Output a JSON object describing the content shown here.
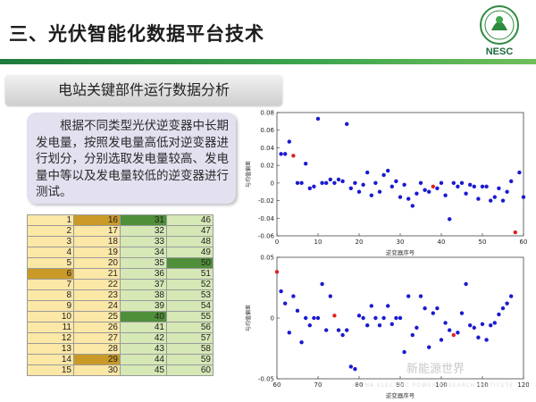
{
  "header": {
    "title": "三、光伏智能化数据平台技术",
    "logo_text": "NESC",
    "accent_color": "#2e8b3e"
  },
  "section": {
    "label": "电站关键部件运行数据分析"
  },
  "description": {
    "text": "根据不同类型光伏逆变器中长期发电量，按照发电量高低对逆变器进行划分，分别选取发电量较高、发电量中等以及发电量较低的逆变器进行测试。"
  },
  "table": {
    "rows": [
      [
        "1",
        "16",
        "31",
        "46"
      ],
      [
        "2",
        "17",
        "32",
        "47"
      ],
      [
        "3",
        "18",
        "33",
        "48"
      ],
      [
        "4",
        "19",
        "34",
        "49"
      ],
      [
        "5",
        "20",
        "35",
        "50"
      ],
      [
        "6",
        "21",
        "36",
        "51"
      ],
      [
        "7",
        "22",
        "37",
        "52"
      ],
      [
        "8",
        "23",
        "38",
        "53"
      ],
      [
        "9",
        "24",
        "39",
        "54"
      ],
      [
        "10",
        "25",
        "40",
        "55"
      ],
      [
        "11",
        "26",
        "41",
        "56"
      ],
      [
        "12",
        "27",
        "42",
        "57"
      ],
      [
        "13",
        "28",
        "43",
        "58"
      ],
      [
        "14",
        "29",
        "44",
        "59"
      ],
      [
        "15",
        "30",
        "45",
        "60"
      ]
    ],
    "highlights": [
      {
        "row": 0,
        "col": 1,
        "color": "orange"
      },
      {
        "row": 0,
        "col": 2,
        "color": "green"
      },
      {
        "row": 4,
        "col": 3,
        "color": "green"
      },
      {
        "row": 5,
        "col": 0,
        "color": "orange"
      },
      {
        "row": 9,
        "col": 2,
        "color": "green"
      },
      {
        "row": 13,
        "col": 1,
        "color": "orange"
      }
    ]
  },
  "chart_data": [
    {
      "type": "scatter",
      "xlabel": "逆变器序号",
      "ylabel": "与均值偏差",
      "xlim": [
        0,
        60
      ],
      "ylim": [
        -0.06,
        0.08
      ],
      "xticks": [
        "0",
        "10",
        "20",
        "30",
        "40",
        "50",
        "60"
      ],
      "yticks": [
        "-0.06",
        "-0.04",
        "-0.02",
        "0",
        "0.02",
        "0.04",
        "0.06",
        "0.08"
      ],
      "series": [
        {
          "color": "#1a1ad0",
          "x": [
            1,
            2,
            3,
            5,
            6,
            7,
            8,
            9,
            10,
            11,
            12,
            13,
            14,
            15,
            16,
            17,
            18,
            19,
            20,
            21,
            22,
            23,
            24,
            25,
            26,
            27,
            28,
            29,
            30,
            31,
            32,
            33,
            34,
            35,
            36,
            37,
            39,
            40,
            41,
            42,
            43,
            44,
            45,
            46,
            47,
            48,
            49,
            50,
            51,
            52,
            53,
            54,
            55,
            56,
            57,
            59,
            60
          ],
          "y": [
            0.033,
            0.033,
            0.047,
            0.0,
            0.0,
            0.022,
            -0.006,
            -0.004,
            0.073,
            0.0,
            0.0,
            0.004,
            0.0,
            0.004,
            0.002,
            0.067,
            -0.006,
            0.0,
            -0.01,
            -0.002,
            0.012,
            -0.014,
            0.0,
            -0.01,
            0.009,
            0.014,
            -0.004,
            0.002,
            -0.016,
            -0.002,
            -0.018,
            -0.026,
            -0.012,
            0.0,
            -0.008,
            -0.01,
            -0.006,
            0.0,
            -0.014,
            -0.041,
            0.0,
            -0.004,
            0.0,
            -0.012,
            -0.002,
            -0.004,
            -0.018,
            -0.004,
            -0.004,
            -0.02,
            -0.016,
            -0.006,
            -0.02,
            -0.01,
            0.002,
            0.012,
            -0.016
          ]
        },
        {
          "color": "#e02020",
          "x": [
            4,
            38,
            58
          ],
          "y": [
            0.031,
            -0.004,
            -0.056
          ]
        }
      ]
    },
    {
      "type": "scatter",
      "xlabel": "逆变器序号",
      "ylabel": "与均值偏差",
      "xlim": [
        60,
        120
      ],
      "ylim": [
        -0.05,
        0.05
      ],
      "xticks": [
        "60",
        "70",
        "80",
        "90",
        "100",
        "110",
        "120"
      ],
      "yticks": [
        "-0.05",
        "0",
        "0.05"
      ],
      "series": [
        {
          "color": "#1a1ad0",
          "x": [
            61,
            62,
            63,
            64,
            65,
            66,
            67,
            68,
            69,
            70,
            71,
            72,
            73,
            75,
            76,
            77,
            78,
            79,
            80,
            81,
            82,
            83,
            84,
            85,
            86,
            87,
            88,
            89,
            90,
            91,
            92,
            93,
            94,
            95,
            96,
            97,
            98,
            99,
            100,
            101,
            102,
            104,
            105,
            106,
            107,
            108,
            109,
            110,
            111,
            112,
            113,
            114,
            115,
            116,
            117
          ],
          "y": [
            0.022,
            0.012,
            -0.012,
            0.018,
            0.006,
            -0.02,
            0.0,
            -0.006,
            0.0,
            0.0,
            0.028,
            -0.01,
            0.018,
            -0.01,
            -0.014,
            -0.01,
            -0.04,
            -0.042,
            0.002,
            0.0,
            -0.006,
            0.01,
            0.0,
            -0.006,
            0.0,
            0.01,
            -0.005,
            0.0,
            0.0,
            -0.028,
            0.018,
            -0.014,
            -0.008,
            0.018,
            0.008,
            -0.024,
            0.004,
            0.008,
            -0.018,
            -0.004,
            -0.01,
            -0.012,
            0.004,
            0.028,
            -0.006,
            -0.008,
            -0.016,
            -0.005,
            -0.018,
            -0.006,
            -0.004,
            0.003,
            0.008,
            0.012,
            0.018
          ]
        },
        {
          "color": "#e02020",
          "x": [
            60,
            74,
            103
          ],
          "y": [
            0.038,
            0.002,
            -0.014
          ]
        }
      ]
    }
  ],
  "watermark": {
    "text": "新能源世界",
    "sub": "CHINA ELECTRIC POWER RESEARCH INSTITUTE"
  }
}
